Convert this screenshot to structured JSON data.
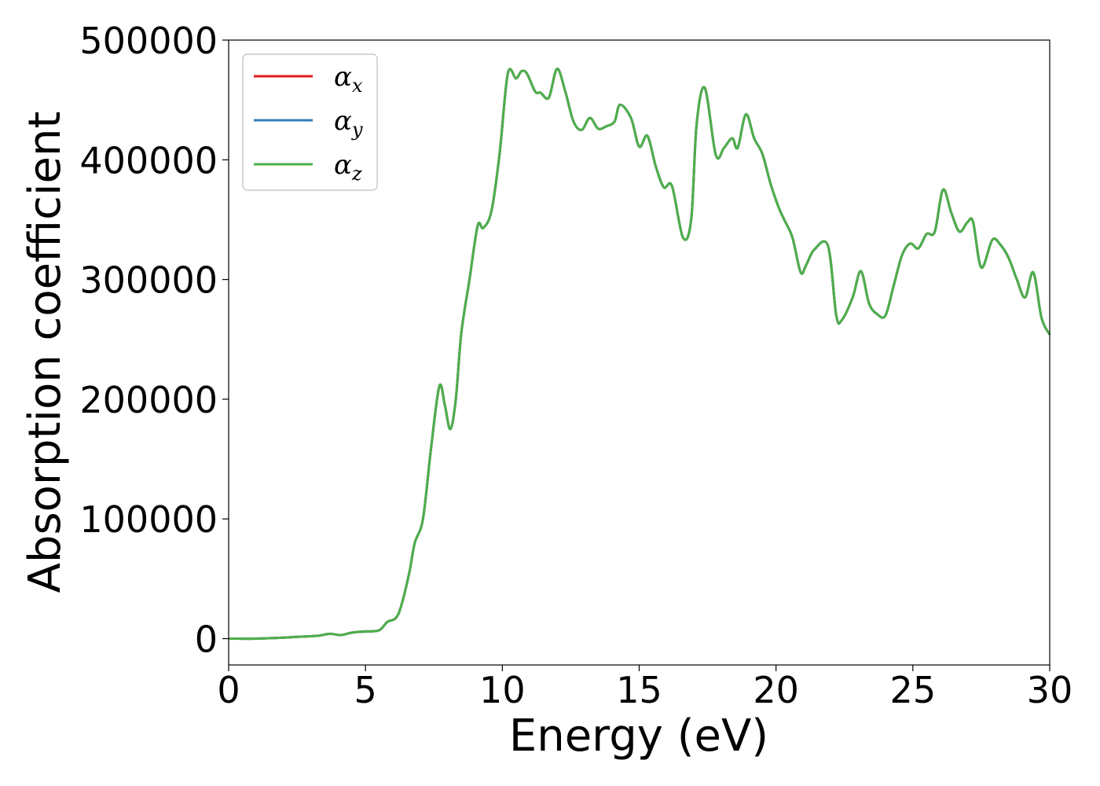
{
  "chart_data": {
    "type": "line",
    "xlabel": "Energy (eV)",
    "ylabel": "Absorption coefficient",
    "xlim": [
      0,
      30
    ],
    "ylim": [
      -22000,
      500000
    ],
    "xticks": [
      0,
      5,
      10,
      15,
      20,
      25,
      30
    ],
    "xtick_labels": [
      "0",
      "5",
      "10",
      "15",
      "20",
      "25",
      "30"
    ],
    "yticks": [
      0,
      100000,
      200000,
      300000,
      400000,
      500000
    ],
    "ytick_labels": [
      "0",
      "100000",
      "200000",
      "300000",
      "400000",
      "500000"
    ],
    "grid": false,
    "legend_position": "top-left",
    "legend": [
      {
        "symbol": "α",
        "subscript": "x",
        "color": "#e41a1c"
      },
      {
        "symbol": "α",
        "subscript": "y",
        "color": "#377eb8"
      },
      {
        "symbol": "α",
        "subscript": "z",
        "color": "#4daf4a"
      }
    ],
    "series": [
      {
        "name": "αx",
        "color": "#e41a1c",
        "x": [
          0,
          1,
          2,
          2.5,
          3,
          3.3,
          3.7,
          4.1,
          4.5,
          5,
          5.5,
          5.8,
          6.1,
          6.3,
          6.6,
          6.8,
          7.1,
          7.4,
          7.7,
          7.9,
          8.1,
          8.3,
          8.5,
          8.8,
          9.1,
          9.3,
          9.6,
          9.9,
          10.2,
          10.5,
          10.7,
          10.9,
          11.2,
          11.4,
          11.7,
          12.0,
          12.3,
          12.6,
          12.9,
          13.2,
          13.5,
          13.8,
          14.1,
          14.3,
          14.7,
          15.0,
          15.3,
          15.6,
          15.9,
          16.2,
          16.6,
          16.9,
          17.1,
          17.4,
          17.8,
          18.1,
          18.4,
          18.6,
          18.9,
          19.2,
          19.5,
          19.8,
          20.1,
          20.3,
          20.6,
          20.9,
          21.1,
          21.4,
          21.9,
          22.2,
          22.4,
          22.8,
          23.1,
          23.4,
          23.7,
          24.0,
          24.3,
          24.6,
          24.9,
          25.2,
          25.5,
          25.8,
          26.1,
          26.4,
          26.7,
          27.0,
          27.2,
          27.5,
          27.9,
          28.2,
          28.5,
          28.8,
          29.1,
          29.4,
          29.7,
          30.0
        ],
        "y": [
          0,
          0,
          800,
          1500,
          2000,
          2500,
          4000,
          3000,
          5000,
          6000,
          7000,
          14000,
          17000,
          27000,
          55000,
          80000,
          100000,
          160000,
          211000,
          195000,
          175000,
          200000,
          255000,
          300000,
          345000,
          343000,
          357000,
          405000,
          472000,
          468000,
          474000,
          472000,
          457000,
          456000,
          452000,
          476000,
          457000,
          432000,
          425000,
          435000,
          426000,
          428000,
          432000,
          446000,
          435000,
          411000,
          420000,
          395000,
          377000,
          378000,
          335000,
          350000,
          430000,
          460000,
          404000,
          410000,
          418000,
          410000,
          438000,
          418000,
          405000,
          380000,
          360000,
          350000,
          335000,
          306000,
          312000,
          325000,
          328000,
          270000,
          266000,
          285000,
          307000,
          280000,
          271000,
          270000,
          295000,
          320000,
          330000,
          326000,
          338000,
          340000,
          375000,
          356000,
          340000,
          348000,
          348000,
          310000,
          333000,
          329000,
          318000,
          300000,
          285000,
          306000,
          268000,
          254000
        ]
      },
      {
        "name": "αy",
        "color": "#377eb8",
        "same_as": "αx"
      },
      {
        "name": "αz",
        "color": "#4daf4a",
        "same_as": "αx"
      }
    ]
  }
}
